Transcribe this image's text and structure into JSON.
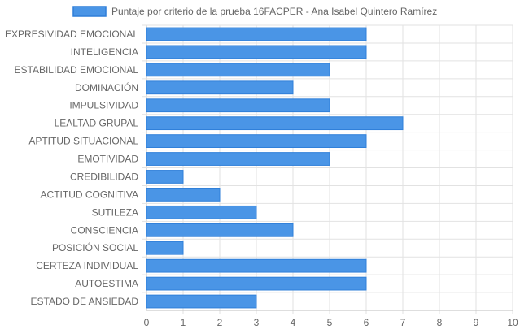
{
  "chart_data": {
    "type": "bar",
    "orientation": "horizontal",
    "categories": [
      "EXPRESIVIDAD EMOCIONAL",
      "INTELIGENCIA",
      "ESTABILIDAD EMOCIONAL",
      "DOMINACIÓN",
      "IMPULSIVIDAD",
      "LEALTAD GRUPAL",
      "APTITUD SITUACIONAL",
      "EMOTIVIDAD",
      "CREDIBILIDAD",
      "ACTITUD COGNITIVA",
      "SUTILEZA",
      "CONSCIENCIA",
      "POSICIÓN SOCIAL",
      "CERTEZA INDIVIDUAL",
      "AUTOESTIMA",
      "ESTADO DE ANSIEDAD"
    ],
    "series": [
      {
        "name": "Puntaje por criterio de la prueba 16FACPER - Ana Isabel Quintero Ramírez",
        "values": [
          6,
          6,
          5,
          4,
          5,
          7,
          6,
          5,
          1,
          2,
          3,
          4,
          1,
          6,
          6,
          3
        ]
      }
    ],
    "xlim": [
      0,
      10
    ],
    "x_ticks": [
      "0",
      "1",
      "2",
      "3",
      "4",
      "5",
      "6",
      "7",
      "8",
      "9",
      "10"
    ],
    "grid": true,
    "legend_position": "top",
    "colors": {
      "bar_fill": "#4a95e6",
      "bar_stroke": "#2f7fd9",
      "grid": "#e2e2e2",
      "axis": "#bdbdbd",
      "text": "#666666"
    }
  }
}
